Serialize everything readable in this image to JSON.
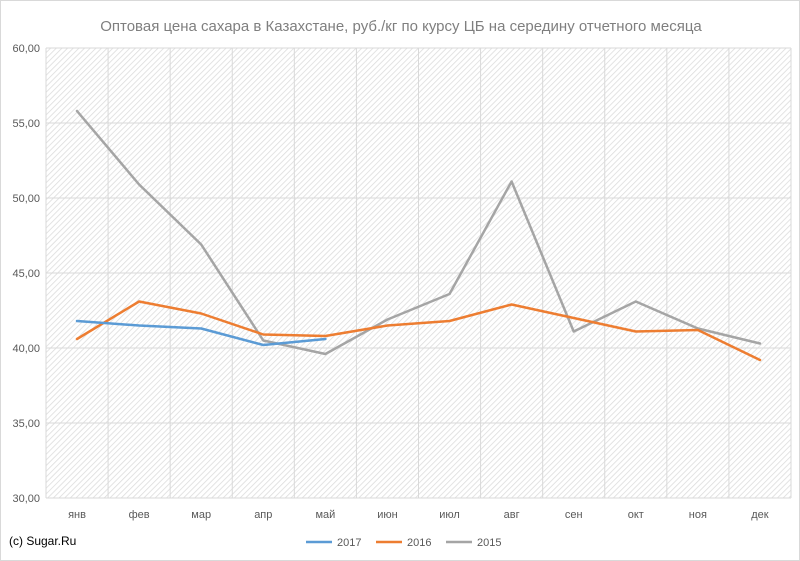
{
  "credit": "(c) Sugar.Ru",
  "chart_data": {
    "type": "line",
    "title": "Оптовая цена сахара в Казахстане, руб./кг по курсу ЦБ на середину отчетного месяца",
    "xlabel": "",
    "ylabel": "",
    "categories": [
      "янв",
      "фев",
      "мар",
      "апр",
      "май",
      "июн",
      "июл",
      "авг",
      "сен",
      "окт",
      "ноя",
      "дек"
    ],
    "yticks": [
      "30,00",
      "35,00",
      "40,00",
      "45,00",
      "50,00",
      "55,00",
      "60,00"
    ],
    "ylim": [
      30,
      60
    ],
    "grid": true,
    "legend_position": "bottom",
    "series": [
      {
        "name": "2017",
        "color": "#5b9bd5",
        "values": [
          41.8,
          41.5,
          41.3,
          40.2,
          40.6,
          null,
          null,
          null,
          null,
          null,
          null,
          null
        ]
      },
      {
        "name": "2016",
        "color": "#ed7d31",
        "values": [
          40.6,
          43.1,
          42.3,
          40.9,
          40.8,
          41.5,
          41.8,
          42.9,
          42.0,
          41.1,
          41.2,
          39.2
        ]
      },
      {
        "name": "2015",
        "color": "#a5a5a5",
        "values": [
          55.8,
          50.9,
          46.9,
          40.5,
          39.6,
          41.9,
          43.6,
          51.1,
          41.1,
          43.1,
          41.3,
          40.3
        ]
      }
    ]
  }
}
